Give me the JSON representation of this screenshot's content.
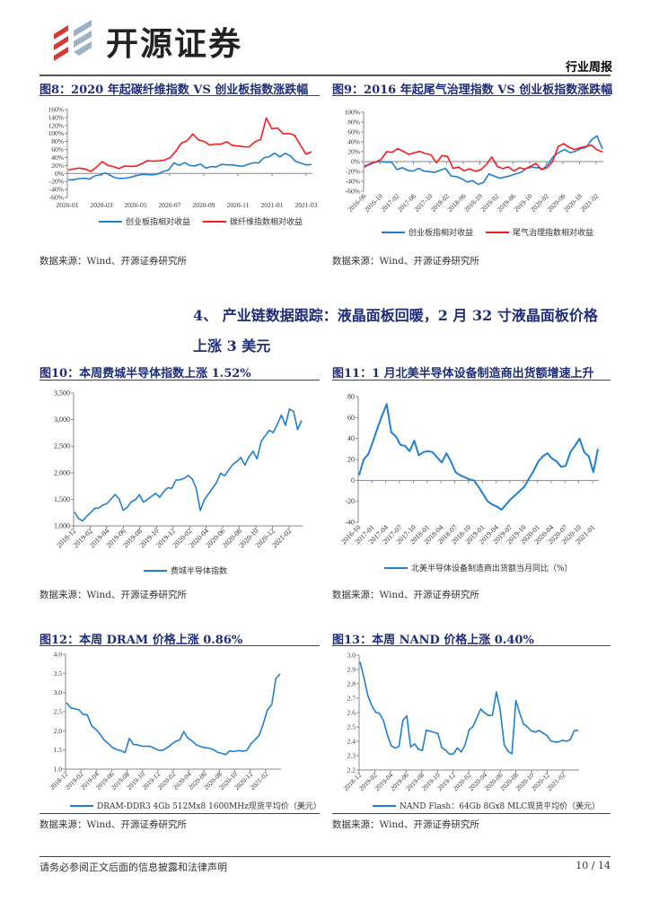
{
  "header": {
    "logo_text": "开源证券",
    "report_type": "行业周报"
  },
  "colors": {
    "blue": "#1f7fd1",
    "red": "#ff1a1a",
    "title": "#1f2d7a",
    "logo_red": "#d63a2f",
    "logo_gray": "#9eb3c2"
  },
  "section": {
    "line1": "4、 产业链数据跟踪：液晶面板回暖，2 月 32 寸液晶面板价格",
    "line2": "上涨 3 美元"
  },
  "source_text": "数据来源：Wind、开源证券研究所",
  "footer": {
    "disclaimer": "请务必参阅正文后面的信息披露和法律声明",
    "page": "10 / 14"
  },
  "chart_data": [
    {
      "id": "fig8",
      "type": "line",
      "title": "图8：2020 年起碳纤维指数 VS 创业板指数涨跌幅",
      "ylim": [
        -60,
        160
      ],
      "yticks": [
        "160%",
        "140%",
        "120%",
        "100%",
        "80%",
        "60%",
        "40%",
        "20%",
        "0%",
        "-20%",
        "-40%",
        "-60%"
      ],
      "ytick_values": [
        160,
        140,
        120,
        100,
        80,
        60,
        40,
        20,
        0,
        -20,
        -40,
        -60
      ],
      "xticks": [
        "2020-01",
        "2020-03",
        "2020-05",
        "2020-07",
        "2020-09",
        "2020-11",
        "2021-01",
        "2021-03"
      ],
      "x_label_style": "flat",
      "series": [
        {
          "name": "创业板指相对收益",
          "color": "#1f7fd1",
          "values": [
            -18,
            -14,
            -12,
            -12,
            -15,
            -8,
            -2,
            2,
            -5,
            -12,
            -14,
            -10,
            -8,
            -5,
            -3,
            -4,
            -2,
            0,
            5,
            8,
            25,
            22,
            28,
            20,
            18,
            22,
            15,
            18,
            16,
            22,
            20,
            23,
            20,
            18,
            22,
            25,
            28,
            40,
            42,
            50,
            40,
            52,
            45,
            30,
            25,
            20,
            24
          ]
        },
        {
          "name": "碳纤维指数相对收益",
          "color": "#ff1a1a",
          "values": [
            8,
            10,
            15,
            12,
            5,
            15,
            28,
            22,
            18,
            12,
            18,
            16,
            20,
            25,
            32,
            30,
            30,
            35,
            40,
            55,
            75,
            80,
            100,
            85,
            80,
            70,
            72,
            75,
            80,
            70,
            68,
            65,
            68,
            80,
            85,
            138,
            110,
            115,
            100,
            100,
            95,
            70,
            50,
            55
          ]
        }
      ]
    },
    {
      "id": "fig9",
      "type": "line",
      "title": "图9：2016 年起尾气治理指数 VS 创业板指数涨跌幅",
      "ylim": [
        -60,
        100
      ],
      "yticks": [
        "100%",
        "80%",
        "60%",
        "40%",
        "20%",
        "0%",
        "-20%",
        "-40%",
        "-60%"
      ],
      "ytick_values": [
        100,
        80,
        60,
        40,
        20,
        0,
        -20,
        -40,
        -60
      ],
      "xticks": [
        "2016-06",
        "2016-10",
        "2017-02",
        "2017-06",
        "2017-10",
        "2018-02",
        "2018-06",
        "2018-10",
        "2019-02",
        "2019-06",
        "2019-10",
        "2020-02",
        "2020-06",
        "2020-10",
        "2021-02"
      ],
      "x_label_style": "rotated",
      "series": [
        {
          "name": "创业板指相对收益",
          "color": "#1f7fd1",
          "values": [
            -10,
            -5,
            0,
            0,
            -2,
            -2,
            -15,
            -12,
            -18,
            -20,
            -15,
            -18,
            -20,
            -22,
            -18,
            -15,
            -28,
            -30,
            -35,
            -42,
            -40,
            -45,
            -42,
            -25,
            -30,
            -35,
            -30,
            -28,
            -25,
            -22,
            -15,
            -10,
            -12,
            -15,
            -5,
            10,
            20,
            25,
            18,
            20,
            25,
            30,
            45,
            52,
            25
          ]
        },
        {
          "name": "尾气治理指数相对收益",
          "color": "#ff1a1a",
          "values": [
            -12,
            -5,
            0,
            5,
            20,
            18,
            25,
            22,
            15,
            18,
            20,
            15,
            15,
            -2,
            12,
            10,
            -15,
            -10,
            -18,
            -15,
            -20,
            -18,
            -5,
            10,
            -10,
            -15,
            -12,
            -18,
            -12,
            -15,
            -10,
            -5,
            -15,
            -12,
            0,
            30,
            35,
            30,
            25,
            28,
            30,
            32,
            25,
            20
          ]
        }
      ]
    },
    {
      "id": "fig10",
      "type": "line",
      "title": "图10：本周费城半导体指数上涨 1.52%",
      "ylim": [
        1000,
        3500
      ],
      "yticks": [
        "3,500",
        "3,000",
        "2,500",
        "2,000",
        "1,500",
        "1,000"
      ],
      "ytick_values": [
        3500,
        3000,
        2500,
        2000,
        1500,
        1000
      ],
      "xticks": [
        "2018-12",
        "2019-02",
        "2019-04",
        "2019-06",
        "2019-08",
        "2019-10",
        "2019-12",
        "2020-02",
        "2020-04",
        "2020-06",
        "2020-08",
        "2020-10",
        "2020-12",
        "2021-02"
      ],
      "x_label_style": "rotated",
      "series": [
        {
          "name": "费城半导体指数",
          "color": "#1f7fd1",
          "values": [
            1250,
            1150,
            1100,
            1180,
            1250,
            1320,
            1350,
            1400,
            1420,
            1500,
            1580,
            1520,
            1300,
            1350,
            1450,
            1480,
            1600,
            1450,
            1500,
            1550,
            1600,
            1550,
            1650,
            1720,
            1700,
            1850,
            1880,
            1900,
            1950,
            1880,
            1700,
            1300,
            1500,
            1600,
            1700,
            1800,
            2000,
            1950,
            2050,
            2150,
            2200,
            2300,
            2150,
            2300,
            2400,
            2250,
            2600,
            2700,
            2800,
            2750,
            2900,
            3100,
            2900,
            3200,
            3150,
            2800,
            3000
          ]
        }
      ]
    },
    {
      "id": "fig11",
      "type": "line",
      "title": "图11：1 月北美半导体设备制造商出货额增速上升",
      "ylim": [
        -40,
        80
      ],
      "yticks": [
        "80",
        "60",
        "40",
        "20",
        "0",
        "-20",
        "-40"
      ],
      "ytick_values": [
        80,
        60,
        40,
        20,
        0,
        -20,
        -40
      ],
      "xticks": [
        "2016-10",
        "2017-01",
        "2017-04",
        "2017-07",
        "2017-10",
        "2018-01",
        "2018-04",
        "2018-07",
        "2018-10",
        "2019-01",
        "2019-04",
        "2019-07",
        "2019-10",
        "2020-01",
        "2020-04",
        "2020-07",
        "2020-10",
        "2021-01"
      ],
      "x_label_style": "rotated",
      "zero_axis": true,
      "series": [
        {
          "name": "北美半导体设备制造商出货额当月同比（%）",
          "color": "#1f7fd1",
          "values": [
            5,
            20,
            25,
            37,
            50,
            62,
            73,
            46,
            42,
            34,
            33,
            28,
            38,
            24,
            27,
            28,
            27,
            22,
            17,
            26,
            18,
            8,
            5,
            3,
            1,
            0,
            -6,
            -13,
            -20,
            -23,
            -25,
            -28,
            -23,
            -18,
            -14,
            -10,
            -6,
            2,
            9,
            18,
            23,
            26,
            21,
            18,
            13,
            14,
            27,
            33,
            40,
            27,
            23,
            8,
            30
          ]
        }
      ]
    },
    {
      "id": "fig12",
      "type": "line",
      "title": "图12：本周 DRAM 价格上涨 0.86%",
      "ylim": [
        1.0,
        4.0
      ],
      "yticks": [
        "4.0",
        "3.5",
        "3.0",
        "2.5",
        "2.0",
        "1.5",
        "1.0"
      ],
      "ytick_values": [
        4.0,
        3.5,
        3.0,
        2.5,
        2.0,
        1.5,
        1.0
      ],
      "xticks": [
        "2018-12",
        "2019-02",
        "2019-04",
        "2019-06",
        "2019-08",
        "2019-10",
        "2019-12",
        "2020-02",
        "2020-04",
        "2020-06",
        "2020-08",
        "2020-10",
        "2020-12",
        "2021-02"
      ],
      "x_label_style": "rotated",
      "series": [
        {
          "name": "DRAM-DDR3 4Gb 512Mx8 1600MHz现货平均价（美元）",
          "color": "#1f7fd1",
          "values": [
            2.72,
            2.62,
            2.58,
            2.55,
            2.42,
            2.4,
            2.15,
            2.05,
            1.92,
            1.75,
            1.65,
            1.58,
            1.52,
            1.48,
            1.42,
            1.78,
            1.66,
            1.64,
            1.6,
            1.59,
            1.58,
            1.56,
            1.5,
            1.49,
            1.55,
            1.62,
            1.74,
            1.77,
            1.98,
            1.8,
            1.72,
            1.65,
            1.6,
            1.56,
            1.54,
            1.5,
            1.46,
            1.42,
            1.38,
            1.47,
            1.44,
            1.5,
            1.48,
            1.48,
            1.65,
            1.75,
            1.9,
            2.2,
            2.55,
            2.68,
            3.35,
            3.5
          ]
        }
      ]
    },
    {
      "id": "fig13",
      "type": "line",
      "title": "图13：本周 NAND 价格上涨 0.40%",
      "ylim": [
        2.2,
        3.0
      ],
      "yticks": [
        "3.0",
        "2.9",
        "2.8",
        "2.7",
        "2.6",
        "2.5",
        "2.4",
        "2.3",
        "2.2"
      ],
      "ytick_values": [
        3.0,
        2.9,
        2.8,
        2.7,
        2.6,
        2.5,
        2.4,
        2.3,
        2.2
      ],
      "xticks": [
        "2018-12",
        "2019-02",
        "2019-04",
        "2019-06",
        "2019-08",
        "2019-10",
        "2019-12",
        "2020-02",
        "2020-04",
        "2020-06",
        "2020-08",
        "2020-10",
        "2020-12",
        "2021-02"
      ],
      "x_label_style": "rotated",
      "series": [
        {
          "name": "NAND Flash：64Gb 8Gx8 MLC现货平均价（美元）",
          "color": "#1f7fd1",
          "values": [
            2.95,
            2.85,
            2.72,
            2.65,
            2.6,
            2.59,
            2.55,
            2.45,
            2.37,
            2.35,
            2.36,
            2.55,
            2.58,
            2.36,
            2.38,
            2.34,
            2.34,
            2.48,
            2.47,
            2.46,
            2.45,
            2.36,
            2.34,
            2.31,
            2.31,
            2.35,
            2.33,
            2.38,
            2.48,
            2.5,
            2.56,
            2.63,
            2.6,
            2.58,
            2.58,
            2.74,
            2.62,
            2.38,
            2.33,
            2.31,
            2.68,
            2.6,
            2.52,
            2.5,
            2.47,
            2.46,
            2.48,
            2.46,
            2.44,
            2.4,
            2.39,
            2.4,
            2.41,
            2.4,
            2.41,
            2.47,
            2.48
          ]
        }
      ]
    }
  ]
}
